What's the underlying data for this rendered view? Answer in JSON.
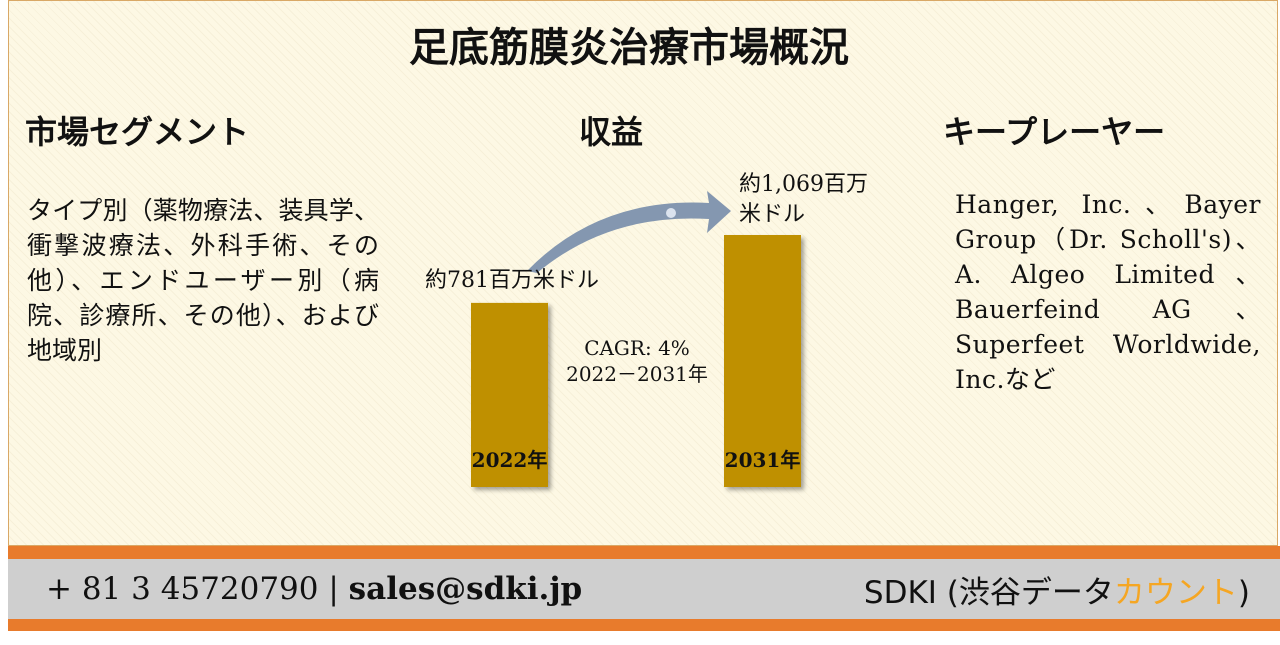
{
  "title": "足底筋膜炎治療市場概況",
  "segments": {
    "heading": "市場セグメント",
    "text": "タイプ別（薬物療法、装具学、衝撃波療法、外科手術、その他）、エンドユーザー別（病院、診療所、その他）、および地域別"
  },
  "revenue": {
    "heading": "収益"
  },
  "players": {
    "heading": "キープレーヤー",
    "text": "Hanger, Inc.、Bayer Group（Dr. Scholl's)、A. Algeo Limited、Bauerfeind AG、Superfeet Worldwide, Inc.など"
  },
  "chart_data": {
    "type": "bar",
    "categories": [
      "2022年",
      "2031年"
    ],
    "values": [
      781,
      1069
    ],
    "value_labels": [
      "約781百万米ドル",
      "約1,069百万米ドル"
    ],
    "unit": "百万米ドル",
    "annotation": [
      "CAGR: 4%",
      "2022－2031年"
    ],
    "bar_color": "#bf9000",
    "arrow_color": "#8497b0"
  },
  "footer": {
    "phone": "+ 81 3 45720790",
    "separator": "|",
    "email": "sales@sdki.jp",
    "brand_prefix": "SDKI (渋谷データ",
    "brand_accent": "カウント",
    "brand_suffix": ")"
  }
}
